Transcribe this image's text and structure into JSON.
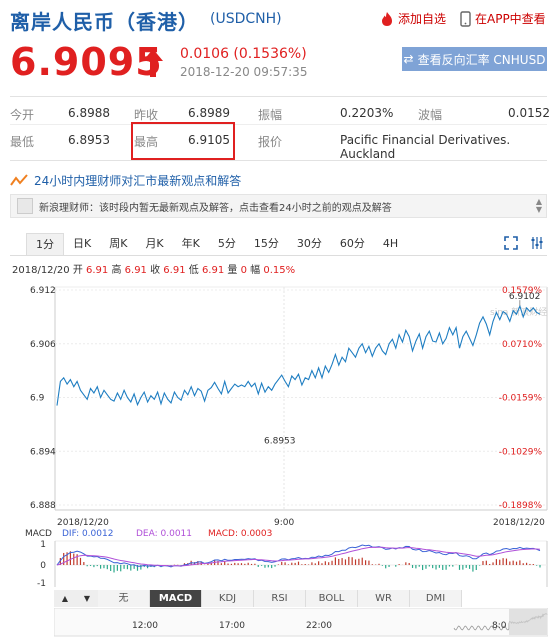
{
  "header": {
    "title": "离岸人民币（香港）",
    "symbol": "(USDCNH)",
    "add_watch": "添加自选",
    "app_view": "在APP中查看"
  },
  "quote": {
    "price": "6.9095",
    "change": "0.0106 (0.1536%)",
    "datetime": "2018-12-20 09:57:35",
    "reverse_button": "查看反向汇率 CNHUSD"
  },
  "stats": {
    "open_label": "今开",
    "open_value": "6.8988",
    "prev_close_label": "昨收",
    "prev_close_value": "6.8989",
    "amplitude_label": "振幅",
    "amplitude_value": "0.2203%",
    "volatility_label": "波幅",
    "volatility_value": "0.0152",
    "low_label": "最低",
    "low_value": "6.8953",
    "high_label": "最高",
    "high_value": "6.9105",
    "quote_label": "报价",
    "quote_value": "Pacific Financial Derivatives. Auckland"
  },
  "news": {
    "heading": "24小时内理财师对汇市最新观点和解答",
    "item": "新浪理财师：该时段内暂无最新观点及解答，点击查看24小时之前的观点及解答"
  },
  "tabs": [
    "1分",
    "日K",
    "周K",
    "月K",
    "年K",
    "5分",
    "15分",
    "30分",
    "60分",
    "4H"
  ],
  "active_tab": "1分",
  "infobar": {
    "date": "2018/12/20",
    "open_label": "开",
    "open": "6.91",
    "high_label": "高",
    "high": "6.91",
    "close_label": "收",
    "close": "6.91",
    "low_label": "低",
    "low": "6.91",
    "volume_label": "量",
    "volume": "0",
    "amp_label": "幅",
    "amp": "0.15%"
  },
  "chart_data": {
    "type": "line",
    "y_ticks_left": [
      "6.912",
      "6.906",
      "6.9",
      "6.894",
      "6.888"
    ],
    "y_ticks_right": [
      "0.1579%",
      "0.0710%",
      "-0.0159%",
      "-0.1029%",
      "-0.1898%"
    ],
    "ylim": [
      6.888,
      6.912
    ],
    "annotations": {
      "high": "6.9102",
      "low": "6.8953",
      "time_label": "9:00"
    },
    "watermark": "sina 新浪财经",
    "values": [
      6.8991,
      6.9018,
      6.9022,
      6.9015,
      6.902,
      6.9012,
      6.9018,
      6.9008,
      6.9003,
      6.8998,
      6.901,
      6.9005,
      6.9012,
      6.9,
      6.9008,
      6.9003,
      6.8998,
      6.8996,
      6.9005,
      6.8998,
      6.9008,
      6.9,
      6.8995,
      6.9004,
      6.8992,
      6.9,
      6.9006,
      6.8995,
      6.9002,
      6.8998,
      6.9006,
      6.8993,
      6.9005,
      6.8998,
      6.8994,
      6.9006,
      6.9,
      6.8997,
      6.9008,
      6.9003,
      6.9012,
      6.9002,
      6.901,
      6.9007,
      6.8996,
      6.9008,
      6.9011,
      6.9017,
      6.901,
      6.9004,
      6.9018,
      6.9005,
      6.901,
      6.9015,
      6.9012,
      6.9014,
      6.9012,
      6.9018,
      6.9012,
      6.9016,
      6.9004,
      6.9016,
      6.9006,
      6.9012,
      6.9008,
      6.9015,
      6.902,
      6.9025,
      6.9018,
      6.9012,
      6.9024,
      6.902,
      6.9026,
      6.9014,
      6.9022,
      6.902,
      6.903,
      6.9022,
      6.9033,
      6.9022,
      6.9035,
      6.9028,
      6.9037,
      6.9048,
      6.9036,
      6.9045,
      6.904,
      6.9055,
      6.905,
      6.9045,
      6.9055,
      6.906,
      6.905,
      6.9057,
      6.9046,
      6.9055,
      6.906,
      6.9052,
      6.9048,
      6.906,
      6.9065,
      6.9055,
      6.907,
      6.9062,
      6.9075,
      6.9068,
      6.9052,
      6.9063,
      6.9071,
      6.9055,
      6.9068,
      6.9074,
      6.9063,
      6.9062,
      6.9072,
      6.906,
      6.9066,
      6.9078,
      6.907,
      6.9078,
      6.9055,
      6.9068,
      6.9074,
      6.9066,
      6.9058,
      6.907,
      6.9083,
      6.909,
      6.9082,
      6.907,
      6.9085,
      6.9095,
      6.9087,
      6.9096,
      6.9093,
      6.9085,
      6.9097,
      6.9093,
      6.9102,
      6.909,
      6.91,
      6.9096,
      6.91,
      6.9095,
      6.9093
    ]
  },
  "macd_bar": {
    "label": "MACD",
    "dif": "DIF: 0.0012",
    "dea": "DEA: 0.0011",
    "macd": "MACD: 0.0003",
    "date_left": "2018/12/20",
    "date_right": "2018/12/20",
    "y_ticks": [
      "1",
      "0",
      "-1"
    ]
  },
  "indicator_tabs": [
    "无",
    "MACD",
    "KDJ",
    "RSI",
    "BOLL",
    "WR",
    "DMI"
  ],
  "active_indicator": "MACD",
  "timeline": [
    "12:00",
    "17:00",
    "22:00",
    "8:0"
  ],
  "colors": {
    "accent_red": "#e02020",
    "brand_blue": "#1f5fa8",
    "line_blue": "#1f7ec2",
    "dif_blue": "#3a63d6",
    "dea_purple": "#b050d8"
  }
}
